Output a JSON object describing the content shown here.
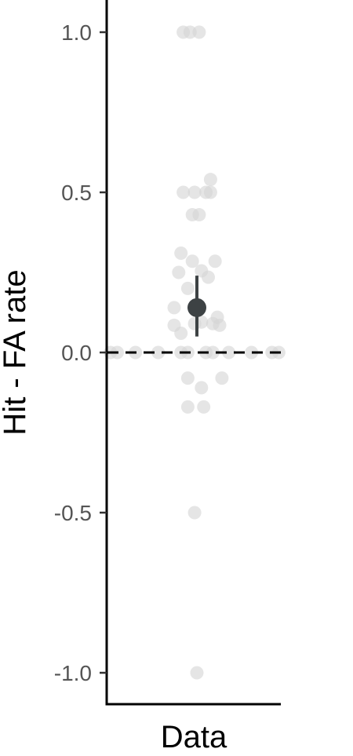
{
  "chart_data": {
    "type": "scatter",
    "title": "",
    "xlabel": "",
    "ylabel": "Hit - FA rate",
    "categories": [
      "Data"
    ],
    "ylim": [
      -1.1,
      1.1
    ],
    "yticks": [
      {
        "value": 1.0,
        "label": "1.0"
      },
      {
        "value": 0.5,
        "label": "0.5"
      },
      {
        "value": 0.0,
        "label": "0.0"
      },
      {
        "value": -0.5,
        "label": "-0.5"
      },
      {
        "value": -1.0,
        "label": "-1.0"
      }
    ],
    "reference_line": {
      "y": 0,
      "style": "dashed"
    },
    "grid": false,
    "points": [
      {
        "x": -0.12,
        "y": 1.0
      },
      {
        "x": -0.06,
        "y": 1.0
      },
      {
        "x": 0.02,
        "y": 1.0
      },
      {
        "x": 0.12,
        "y": 0.54
      },
      {
        "x": -0.12,
        "y": 0.5
      },
      {
        "x": -0.02,
        "y": 0.5
      },
      {
        "x": 0.08,
        "y": 0.5
      },
      {
        "x": 0.12,
        "y": 0.5
      },
      {
        "x": -0.04,
        "y": 0.43
      },
      {
        "x": 0.02,
        "y": 0.43
      },
      {
        "x": -0.14,
        "y": 0.31
      },
      {
        "x": -0.04,
        "y": 0.285
      },
      {
        "x": 0.16,
        "y": 0.285
      },
      {
        "x": -0.16,
        "y": 0.25
      },
      {
        "x": 0.04,
        "y": 0.255
      },
      {
        "x": 0.1,
        "y": 0.235
      },
      {
        "x": -0.08,
        "y": 0.2
      },
      {
        "x": -0.2,
        "y": 0.14
      },
      {
        "x": 0.18,
        "y": 0.11
      },
      {
        "x": 0.04,
        "y": 0.095
      },
      {
        "x": -0.02,
        "y": 0.09
      },
      {
        "x": 0.14,
        "y": 0.09
      },
      {
        "x": 0.2,
        "y": 0.085
      },
      {
        "x": -0.2,
        "y": 0.085
      },
      {
        "x": -0.14,
        "y": 0.06
      },
      {
        "x": -0.76,
        "y": 0.0
      },
      {
        "x": -0.7,
        "y": 0.0
      },
      {
        "x": -0.54,
        "y": 0.0
      },
      {
        "x": -0.34,
        "y": 0.0
      },
      {
        "x": -0.14,
        "y": 0.0
      },
      {
        "x": -0.08,
        "y": 0.0
      },
      {
        "x": 0.08,
        "y": 0.0
      },
      {
        "x": 0.14,
        "y": 0.0
      },
      {
        "x": 0.28,
        "y": 0.0
      },
      {
        "x": 0.48,
        "y": 0.0
      },
      {
        "x": 0.66,
        "y": 0.0
      },
      {
        "x": 0.72,
        "y": 0.0
      },
      {
        "x": -0.08,
        "y": -0.08
      },
      {
        "x": 0.22,
        "y": -0.08
      },
      {
        "x": 0.04,
        "y": -0.11
      },
      {
        "x": -0.08,
        "y": -0.17
      },
      {
        "x": 0.06,
        "y": -0.17
      },
      {
        "x": -0.02,
        "y": -0.5
      },
      {
        "x": 0.0,
        "y": -1.0
      }
    ],
    "summary": {
      "mean": 0.14,
      "ci_low": 0.05,
      "ci_high": 0.24
    },
    "colors": {
      "points": "#d3d3d3",
      "summary": "#3d4244",
      "axis": "#000000"
    }
  }
}
